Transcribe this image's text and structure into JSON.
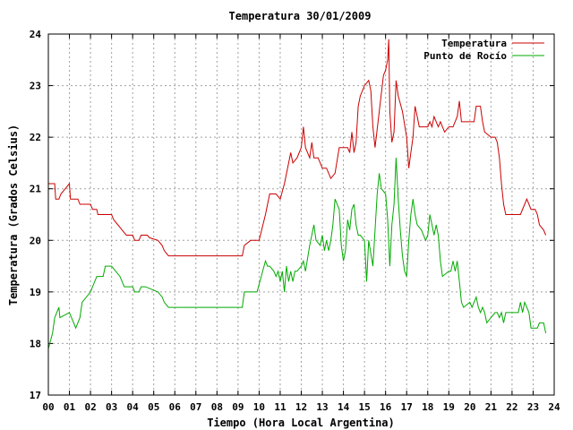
{
  "chart_data": {
    "type": "line",
    "title": "Temperatura 30/01/2009",
    "xlabel": "Tiempo (Hora Local Argentina)",
    "ylabel": "Temperatura (Grados Celsius)",
    "xlim": [
      0,
      24
    ],
    "ylim": [
      17,
      24
    ],
    "x_ticks": [
      "00",
      "01",
      "02",
      "03",
      "04",
      "05",
      "06",
      "07",
      "08",
      "09",
      "10",
      "11",
      "12",
      "13",
      "14",
      "15",
      "16",
      "17",
      "18",
      "19",
      "20",
      "21",
      "22",
      "23",
      "24"
    ],
    "y_ticks": [
      "17",
      "18",
      "19",
      "20",
      "21",
      "22",
      "23",
      "24"
    ],
    "grid": true,
    "legend_position": "top-right",
    "series": [
      {
        "name": "Temperatura",
        "color": "#cc0000",
        "points": [
          [
            0,
            21.1
          ],
          [
            0.3,
            21.1
          ],
          [
            0.35,
            20.8
          ],
          [
            0.5,
            20.8
          ],
          [
            0.6,
            20.9
          ],
          [
            1.0,
            21.1
          ],
          [
            1.05,
            20.8
          ],
          [
            1.4,
            20.8
          ],
          [
            1.5,
            20.7
          ],
          [
            2.0,
            20.7
          ],
          [
            2.1,
            20.6
          ],
          [
            2.3,
            20.6
          ],
          [
            2.35,
            20.5
          ],
          [
            3.0,
            20.5
          ],
          [
            3.1,
            20.4
          ],
          [
            3.3,
            20.3
          ],
          [
            3.5,
            20.2
          ],
          [
            3.7,
            20.1
          ],
          [
            4.0,
            20.1
          ],
          [
            4.1,
            20.0
          ],
          [
            4.3,
            20.0
          ],
          [
            4.4,
            20.1
          ],
          [
            4.7,
            20.1
          ],
          [
            4.8,
            20.05
          ],
          [
            5.2,
            20.0
          ],
          [
            5.4,
            19.9
          ],
          [
            5.5,
            19.8
          ],
          [
            5.6,
            19.75
          ],
          [
            5.7,
            19.7
          ],
          [
            9.2,
            19.7
          ],
          [
            9.3,
            19.9
          ],
          [
            9.6,
            20.0
          ],
          [
            10.0,
            20.0
          ],
          [
            10.3,
            20.5
          ],
          [
            10.5,
            20.9
          ],
          [
            10.8,
            20.9
          ],
          [
            11.0,
            20.8
          ],
          [
            11.2,
            21.1
          ],
          [
            11.4,
            21.5
          ],
          [
            11.5,
            21.7
          ],
          [
            11.6,
            21.5
          ],
          [
            11.8,
            21.6
          ],
          [
            12.0,
            21.8
          ],
          [
            12.1,
            22.2
          ],
          [
            12.2,
            21.8
          ],
          [
            12.4,
            21.6
          ],
          [
            12.5,
            21.9
          ],
          [
            12.6,
            21.6
          ],
          [
            12.8,
            21.6
          ],
          [
            13.0,
            21.4
          ],
          [
            13.2,
            21.4
          ],
          [
            13.4,
            21.2
          ],
          [
            13.6,
            21.3
          ],
          [
            13.8,
            21.8
          ],
          [
            14.2,
            21.8
          ],
          [
            14.3,
            21.7
          ],
          [
            14.4,
            22.1
          ],
          [
            14.5,
            21.7
          ],
          [
            14.6,
            21.9
          ],
          [
            14.7,
            22.6
          ],
          [
            14.8,
            22.8
          ],
          [
            14.9,
            22.9
          ],
          [
            15.0,
            23.0
          ],
          [
            15.2,
            23.1
          ],
          [
            15.3,
            22.9
          ],
          [
            15.4,
            22.2
          ],
          [
            15.5,
            21.8
          ],
          [
            15.7,
            22.5
          ],
          [
            15.9,
            23.2
          ],
          [
            16.0,
            23.3
          ],
          [
            16.1,
            23.5
          ],
          [
            16.15,
            23.9
          ],
          [
            16.2,
            22.5
          ],
          [
            16.3,
            21.9
          ],
          [
            16.4,
            22.1
          ],
          [
            16.5,
            23.1
          ],
          [
            16.6,
            22.8
          ],
          [
            16.8,
            22.5
          ],
          [
            17.0,
            22.0
          ],
          [
            17.1,
            21.4
          ],
          [
            17.2,
            21.7
          ],
          [
            17.3,
            22.0
          ],
          [
            17.4,
            22.6
          ],
          [
            17.5,
            22.4
          ],
          [
            17.6,
            22.2
          ],
          [
            18.0,
            22.2
          ],
          [
            18.1,
            22.3
          ],
          [
            18.2,
            22.2
          ],
          [
            18.3,
            22.4
          ],
          [
            18.5,
            22.2
          ],
          [
            18.6,
            22.3
          ],
          [
            18.8,
            22.1
          ],
          [
            19.0,
            22.2
          ],
          [
            19.2,
            22.2
          ],
          [
            19.4,
            22.4
          ],
          [
            19.5,
            22.7
          ],
          [
            19.6,
            22.3
          ],
          [
            20.2,
            22.3
          ],
          [
            20.3,
            22.6
          ],
          [
            20.5,
            22.6
          ],
          [
            20.6,
            22.3
          ],
          [
            20.7,
            22.1
          ],
          [
            21.0,
            22.0
          ],
          [
            21.2,
            22.0
          ],
          [
            21.3,
            21.9
          ],
          [
            21.4,
            21.6
          ],
          [
            21.5,
            21.1
          ],
          [
            21.6,
            20.7
          ],
          [
            21.7,
            20.5
          ],
          [
            22.0,
            20.5
          ],
          [
            22.4,
            20.5
          ],
          [
            22.6,
            20.7
          ],
          [
            22.7,
            20.8
          ],
          [
            22.8,
            20.7
          ],
          [
            22.9,
            20.6
          ],
          [
            23.1,
            20.6
          ],
          [
            23.2,
            20.5
          ],
          [
            23.3,
            20.3
          ],
          [
            23.5,
            20.2
          ],
          [
            23.6,
            20.1
          ]
        ]
      },
      {
        "name": "Punto de Rocío",
        "color": "#00aa00",
        "points": [
          [
            0,
            17.9
          ],
          [
            0.2,
            18.2
          ],
          [
            0.3,
            18.5
          ],
          [
            0.4,
            18.6
          ],
          [
            0.5,
            18.7
          ],
          [
            0.55,
            18.5
          ],
          [
            1.0,
            18.6
          ],
          [
            1.2,
            18.4
          ],
          [
            1.3,
            18.3
          ],
          [
            1.5,
            18.5
          ],
          [
            1.6,
            18.8
          ],
          [
            2.0,
            19.0
          ],
          [
            2.1,
            19.1
          ],
          [
            2.3,
            19.3
          ],
          [
            2.6,
            19.3
          ],
          [
            2.7,
            19.5
          ],
          [
            3.0,
            19.5
          ],
          [
            3.2,
            19.4
          ],
          [
            3.4,
            19.3
          ],
          [
            3.6,
            19.1
          ],
          [
            4.0,
            19.1
          ],
          [
            4.1,
            19.0
          ],
          [
            4.3,
            19.0
          ],
          [
            4.4,
            19.1
          ],
          [
            4.6,
            19.1
          ],
          [
            5.2,
            19.0
          ],
          [
            5.4,
            18.9
          ],
          [
            5.5,
            18.8
          ],
          [
            5.6,
            18.75
          ],
          [
            5.7,
            18.7
          ],
          [
            9.2,
            18.7
          ],
          [
            9.3,
            19.0
          ],
          [
            9.9,
            19.0
          ],
          [
            10.1,
            19.3
          ],
          [
            10.3,
            19.6
          ],
          [
            10.4,
            19.5
          ],
          [
            10.5,
            19.5
          ],
          [
            10.7,
            19.4
          ],
          [
            10.8,
            19.3
          ],
          [
            10.9,
            19.4
          ],
          [
            11.0,
            19.2
          ],
          [
            11.1,
            19.4
          ],
          [
            11.2,
            19.0
          ],
          [
            11.3,
            19.5
          ],
          [
            11.4,
            19.2
          ],
          [
            11.5,
            19.4
          ],
          [
            11.6,
            19.2
          ],
          [
            11.7,
            19.4
          ],
          [
            11.8,
            19.4
          ],
          [
            12.0,
            19.5
          ],
          [
            12.1,
            19.6
          ],
          [
            12.2,
            19.4
          ],
          [
            12.4,
            19.9
          ],
          [
            12.6,
            20.3
          ],
          [
            12.7,
            20.0
          ],
          [
            12.9,
            19.9
          ],
          [
            13.0,
            20.1
          ],
          [
            13.1,
            19.8
          ],
          [
            13.2,
            20.0
          ],
          [
            13.3,
            19.8
          ],
          [
            13.4,
            20.0
          ],
          [
            13.5,
            20.3
          ],
          [
            13.6,
            20.8
          ],
          [
            13.8,
            20.6
          ],
          [
            13.9,
            19.9
          ],
          [
            14.0,
            19.6
          ],
          [
            14.1,
            19.8
          ],
          [
            14.2,
            20.4
          ],
          [
            14.3,
            20.2
          ],
          [
            14.4,
            20.6
          ],
          [
            14.5,
            20.7
          ],
          [
            14.6,
            20.3
          ],
          [
            14.7,
            20.1
          ],
          [
            14.8,
            20.1
          ],
          [
            15.0,
            20.0
          ],
          [
            15.1,
            19.2
          ],
          [
            15.2,
            20.0
          ],
          [
            15.4,
            19.5
          ],
          [
            15.6,
            20.9
          ],
          [
            15.7,
            21.3
          ],
          [
            15.8,
            21.0
          ],
          [
            16.0,
            20.9
          ],
          [
            16.1,
            20.4
          ],
          [
            16.2,
            19.5
          ],
          [
            16.3,
            20.3
          ],
          [
            16.4,
            20.7
          ],
          [
            16.5,
            21.6
          ],
          [
            16.6,
            20.8
          ],
          [
            16.7,
            20.2
          ],
          [
            16.8,
            19.7
          ],
          [
            16.9,
            19.4
          ],
          [
            17.0,
            19.3
          ],
          [
            17.1,
            20.0
          ],
          [
            17.2,
            20.5
          ],
          [
            17.3,
            20.8
          ],
          [
            17.4,
            20.5
          ],
          [
            17.5,
            20.3
          ],
          [
            17.7,
            20.2
          ],
          [
            17.9,
            20.0
          ],
          [
            18.0,
            20.1
          ],
          [
            18.1,
            20.5
          ],
          [
            18.2,
            20.3
          ],
          [
            18.3,
            20.1
          ],
          [
            18.4,
            20.3
          ],
          [
            18.5,
            20.1
          ],
          [
            18.6,
            19.6
          ],
          [
            18.7,
            19.3
          ],
          [
            19.0,
            19.4
          ],
          [
            19.1,
            19.4
          ],
          [
            19.2,
            19.6
          ],
          [
            19.3,
            19.4
          ],
          [
            19.4,
            19.6
          ],
          [
            19.5,
            19.2
          ],
          [
            19.6,
            18.8
          ],
          [
            19.7,
            18.7
          ],
          [
            20.0,
            18.8
          ],
          [
            20.1,
            18.7
          ],
          [
            20.2,
            18.8
          ],
          [
            20.3,
            18.9
          ],
          [
            20.4,
            18.7
          ],
          [
            20.5,
            18.6
          ],
          [
            20.6,
            18.7
          ],
          [
            20.7,
            18.6
          ],
          [
            20.8,
            18.4
          ],
          [
            21.0,
            18.5
          ],
          [
            21.2,
            18.6
          ],
          [
            21.3,
            18.6
          ],
          [
            21.4,
            18.5
          ],
          [
            21.5,
            18.6
          ],
          [
            21.6,
            18.4
          ],
          [
            21.7,
            18.6
          ],
          [
            22.0,
            18.6
          ],
          [
            22.3,
            18.6
          ],
          [
            22.4,
            18.8
          ],
          [
            22.5,
            18.6
          ],
          [
            22.6,
            18.8
          ],
          [
            22.7,
            18.7
          ],
          [
            22.8,
            18.6
          ],
          [
            22.9,
            18.3
          ],
          [
            23.2,
            18.3
          ],
          [
            23.3,
            18.4
          ],
          [
            23.5,
            18.4
          ],
          [
            23.6,
            18.2
          ]
        ]
      }
    ]
  }
}
